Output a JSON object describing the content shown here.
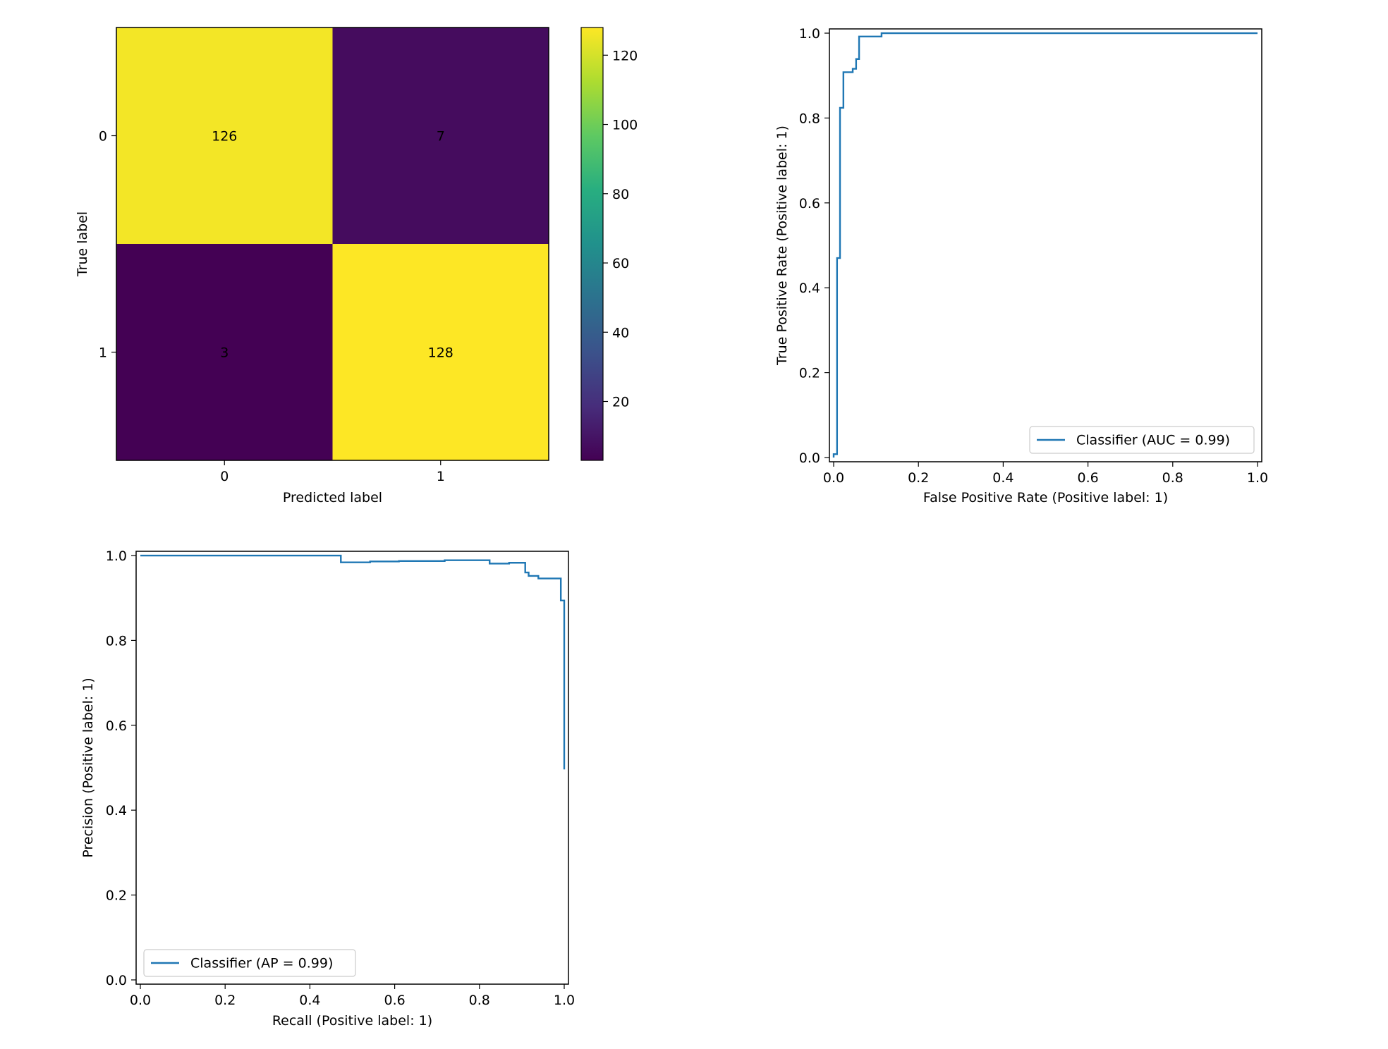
{
  "chart_data": [
    {
      "type": "heatmap",
      "xlabel": "Predicted label",
      "ylabel": "True label",
      "x_categories": [
        "0",
        "1"
      ],
      "y_categories": [
        "0",
        "1"
      ],
      "values": [
        [
          126,
          7
        ],
        [
          3,
          128
        ]
      ],
      "colormap": "viridis",
      "colorbar_ticks": [
        "20",
        "40",
        "60",
        "80",
        "100",
        "120"
      ]
    },
    {
      "type": "line",
      "xlabel": "False Positive Rate (Positive label: 1)",
      "ylabel": "True Positive Rate (Positive label: 1)",
      "xlim": [
        -0.01,
        1.01
      ],
      "ylim": [
        -0.01,
        1.01
      ],
      "x_ticks": [
        "0.0",
        "0.2",
        "0.4",
        "0.6",
        "0.8",
        "1.0"
      ],
      "y_ticks": [
        "0.0",
        "0.2",
        "0.4",
        "0.6",
        "0.8",
        "1.0"
      ],
      "legend": "lower right",
      "series": [
        {
          "name": "Classifier (AUC = 0.99)",
          "color": "#1f77b4",
          "points": [
            [
              0,
              0
            ],
            [
              0,
              0.008
            ],
            [
              0.008,
              0.008
            ],
            [
              0.008,
              0.47
            ],
            [
              0.015,
              0.47
            ],
            [
              0.015,
              0.824
            ],
            [
              0.023,
              0.824
            ],
            [
              0.023,
              0.908
            ],
            [
              0.045,
              0.908
            ],
            [
              0.045,
              0.916
            ],
            [
              0.053,
              0.916
            ],
            [
              0.053,
              0.939
            ],
            [
              0.06,
              0.939
            ],
            [
              0.06,
              0.992
            ],
            [
              0.113,
              0.992
            ],
            [
              0.113,
              1.0
            ],
            [
              1.0,
              1.0
            ]
          ]
        }
      ]
    },
    {
      "type": "line",
      "xlabel": "Recall (Positive label: 1)",
      "ylabel": "Precision (Positive label: 1)",
      "xlim": [
        -0.01,
        1.01
      ],
      "ylim": [
        -0.01,
        1.01
      ],
      "x_ticks": [
        "0.0",
        "0.2",
        "0.4",
        "0.6",
        "0.8",
        "1.0"
      ],
      "y_ticks": [
        "0.0",
        "0.2",
        "0.4",
        "0.6",
        "0.8",
        "1.0"
      ],
      "legend": "lower left",
      "series": [
        {
          "name": "Classifier (AP = 0.99)",
          "color": "#1f77b4",
          "points": [
            [
              0,
              1.0
            ],
            [
              0.473,
              1.0
            ],
            [
              0.473,
              0.984
            ],
            [
              0.542,
              0.984
            ],
            [
              0.542,
              0.986
            ],
            [
              0.61,
              0.986
            ],
            [
              0.61,
              0.987
            ],
            [
              0.718,
              0.987
            ],
            [
              0.718,
              0.989
            ],
            [
              0.824,
              0.989
            ],
            [
              0.824,
              0.981
            ],
            [
              0.87,
              0.981
            ],
            [
              0.87,
              0.983
            ],
            [
              0.908,
              0.983
            ],
            [
              0.908,
              0.96
            ],
            [
              0.916,
              0.96
            ],
            [
              0.916,
              0.952
            ],
            [
              0.939,
              0.952
            ],
            [
              0.939,
              0.946
            ],
            [
              0.992,
              0.946
            ],
            [
              0.992,
              0.894
            ],
            [
              1.0,
              0.894
            ],
            [
              1.0,
              0.496
            ]
          ]
        }
      ]
    }
  ]
}
